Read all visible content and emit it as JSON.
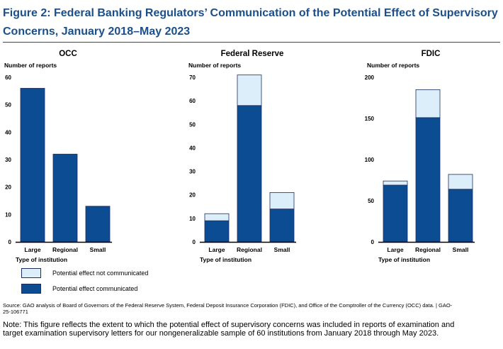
{
  "figure": {
    "title": "Figure 2: Federal Banking Regulators’ Communication of the Potential Effect of Supervisory Concerns, January 2018–May 2023"
  },
  "colors": {
    "communicated": "#0b4c93",
    "not_communicated": "#dbeefa",
    "outline": "#1d2f5f",
    "title": "#1a4f8b"
  },
  "legend": {
    "not_communicated": "Potential effect not communicated",
    "communicated": "Potential effect communicated"
  },
  "source": "Source: GAO analysis of Board of Governors of the Federal Reserve System, Federal Deposit Insurance Corporation (FDIC), and Office of the Comptroller of the Currency (OCC) data. | GAO-25-106771",
  "note": "Note: This figure reflects the extent to which the potential effect of supervisory concerns was included in reports of examination and target examination supervisory letters for our nongeneralizable sample of 60 institutions from January 2018 through May 2023.",
  "chart_data": [
    {
      "type": "bar",
      "stacked": true,
      "title": "OCC",
      "ylabel": "Number of reports",
      "xlabel": "Type of institution",
      "categories": [
        "Large",
        "Regional",
        "Small"
      ],
      "ylim": [
        0,
        60
      ],
      "yticks": [
        0,
        10,
        20,
        30,
        40,
        50,
        60
      ],
      "series": [
        {
          "name": "Potential effect communicated",
          "values": [
            56,
            32,
            13
          ]
        },
        {
          "name": "Potential effect not communicated",
          "values": [
            0,
            0,
            0
          ]
        }
      ]
    },
    {
      "type": "bar",
      "stacked": true,
      "title": "Federal Reserve",
      "ylabel": "Number of reports",
      "xlabel": "Type of institution",
      "categories": [
        "Large",
        "Regional",
        "Small"
      ],
      "ylim": [
        0,
        70
      ],
      "yticks": [
        0,
        10,
        20,
        30,
        40,
        50,
        60,
        70
      ],
      "series": [
        {
          "name": "Potential effect communicated",
          "values": [
            9,
            58,
            14
          ]
        },
        {
          "name": "Potential effect not communicated",
          "values": [
            3,
            13,
            7
          ]
        }
      ]
    },
    {
      "type": "bar",
      "stacked": true,
      "title": "FDIC",
      "ylabel": "Number of reports",
      "xlabel": "Type of institution",
      "categories": [
        "Large",
        "Regional",
        "Small"
      ],
      "ylim": [
        0,
        200
      ],
      "yticks": [
        0,
        50,
        100,
        150,
        200
      ],
      "series": [
        {
          "name": "Potential effect communicated",
          "values": [
            69,
            151,
            64
          ]
        },
        {
          "name": "Potential effect not communicated",
          "values": [
            5,
            34,
            18
          ]
        }
      ]
    }
  ]
}
